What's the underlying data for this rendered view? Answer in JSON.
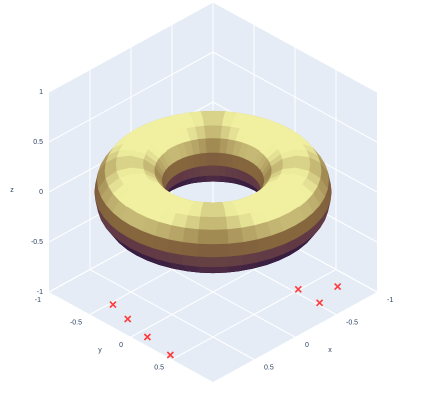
{
  "chart_data": {
    "type": "surface3d",
    "xaxis_title": "x",
    "yaxis_title": "y",
    "zaxis_title": "z",
    "xlim": [
      -1,
      1
    ],
    "ylim": [
      -1,
      1
    ],
    "zlim": [
      -1,
      1
    ],
    "xticks": [
      -1,
      -0.5,
      0,
      0.5
    ],
    "yticks": [
      -1,
      -0.5,
      0,
      0.5
    ],
    "zticks": [
      -1,
      -0.5,
      0,
      0.5,
      1
    ],
    "grid": true,
    "surface": {
      "R": 0.72,
      "r": 0.3
    },
    "series": [
      {
        "type": "scatter3d",
        "color": "#ff3b3b",
        "x": [
          0.75,
          0.82,
          0.9,
          0.96,
          -0.55,
          -0.53,
          -0.82
        ],
        "y": [
          -0.47,
          -0.22,
          0.1,
          0.44,
          0.49,
          0.77,
          0.7
        ],
        "z": [
          -1,
          -1,
          -1,
          -1,
          -1,
          -1,
          -1
        ]
      }
    ]
  }
}
